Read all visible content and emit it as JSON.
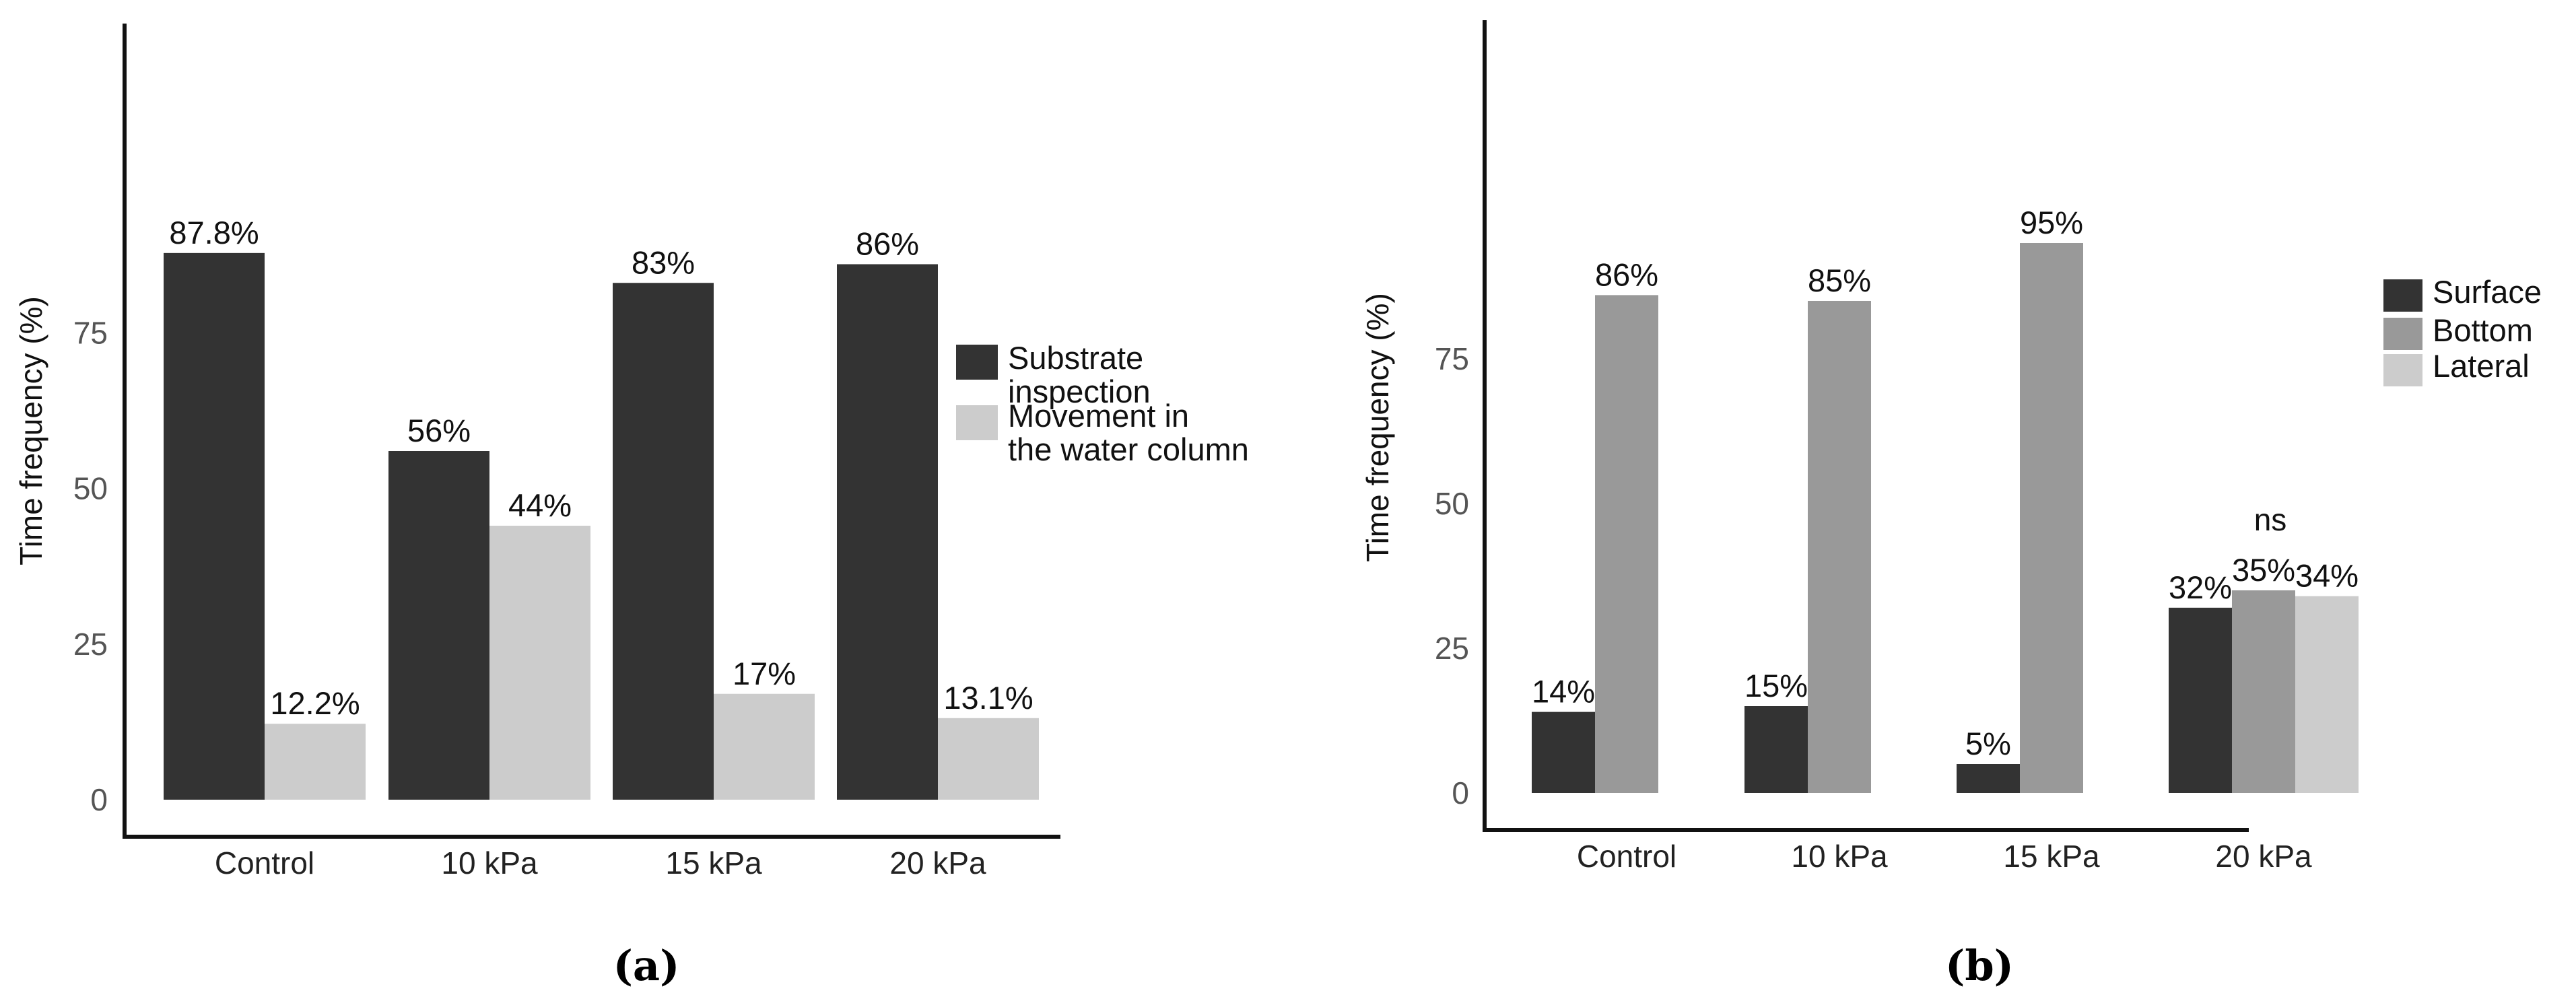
{
  "chart_data": [
    {
      "type": "bar",
      "panel_label": "(a)",
      "title": "",
      "xlabel": "",
      "ylabel": "Time frequency (%)",
      "categories": [
        "Control",
        "10 kPa",
        "15 kPa",
        "20 kPa"
      ],
      "yticks": [
        "0",
        "25",
        "50",
        "75"
      ],
      "ylim": [
        0,
        100
      ],
      "grid": false,
      "legend_position": "right",
      "series": [
        {
          "legend_lines": [
            "Substrate",
            "inspection"
          ],
          "color": "#333333",
          "values": [
            87.8,
            56,
            83,
            86
          ],
          "labels": [
            "87.8%",
            "56%",
            "83%",
            "86%"
          ]
        },
        {
          "legend_lines": [
            "Movement in",
            "the water column"
          ],
          "color": "#cccccc",
          "values": [
            12.2,
            44,
            17,
            13.1
          ],
          "labels": [
            "12.2%",
            "44%",
            "17%",
            "13.1%"
          ]
        }
      ]
    },
    {
      "type": "bar",
      "panel_label": "(b)",
      "title": "",
      "xlabel": "",
      "ylabel": "Time frequency (%)",
      "categories": [
        "Control",
        "10 kPa",
        "15 kPa",
        "20 kPa"
      ],
      "yticks": [
        "0",
        "25",
        "50",
        "75"
      ],
      "ylim": [
        0,
        100
      ],
      "grid": false,
      "legend_position": "right",
      "annotations": [
        {
          "category": "20 kPa",
          "text": "ns"
        }
      ],
      "series": [
        {
          "name": "Surface",
          "color": "#333333",
          "values": [
            14,
            15,
            5,
            32
          ],
          "labels": [
            "14%",
            "15%",
            "5%",
            "32%"
          ]
        },
        {
          "name": "Bottom",
          "color": "#999999",
          "values": [
            86,
            85,
            95,
            35
          ],
          "labels": [
            "86%",
            "85%",
            "95%",
            "35%"
          ]
        },
        {
          "name": "Lateral",
          "color": "#cccccc",
          "values": [
            0,
            0,
            0,
            34
          ],
          "labels": [
            "",
            "",
            "",
            "34%"
          ]
        }
      ]
    }
  ]
}
